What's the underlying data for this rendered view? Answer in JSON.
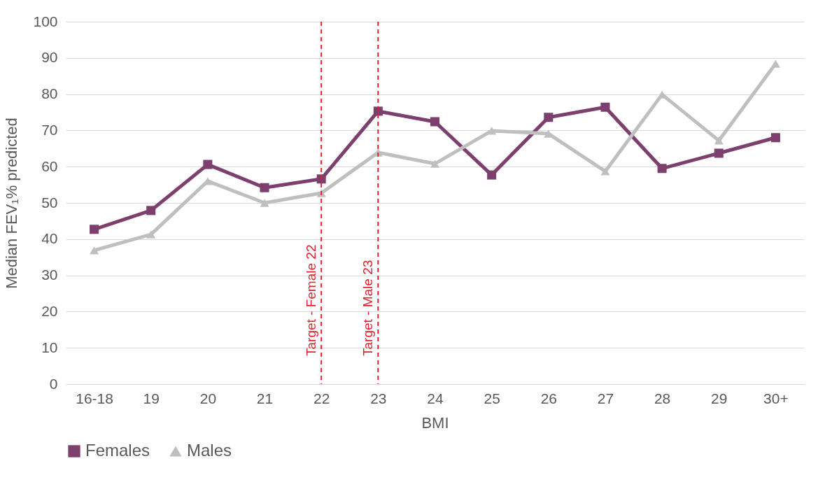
{
  "chart_data": {
    "type": "line",
    "xlabel": "BMI",
    "ylabel": "Median FEV₁% predicted",
    "categories": [
      "16-18",
      "19",
      "20",
      "21",
      "22",
      "23",
      "24",
      "25",
      "26",
      "27",
      "28",
      "29",
      "30+"
    ],
    "series": [
      {
        "name": "Females",
        "color": "#7d3f6e",
        "marker": "square",
        "values": [
          42.7,
          47.9,
          60.6,
          54.2,
          56.6,
          75.3,
          72.4,
          57.7,
          73.6,
          76.4,
          59.5,
          63.7,
          68.0
        ]
      },
      {
        "name": "Males",
        "color": "#bfbfbf",
        "marker": "triangle",
        "values": [
          36.9,
          41.3,
          56.0,
          50.0,
          52.7,
          63.9,
          60.8,
          69.9,
          69.1,
          58.7,
          79.9,
          67.2,
          88.4
        ]
      }
    ],
    "ylim": [
      0,
      100
    ],
    "yticks": [
      0,
      10,
      20,
      30,
      40,
      50,
      60,
      70,
      80,
      90,
      100
    ],
    "grid": "y",
    "legend": "bottom",
    "ref_lines": [
      {
        "axis": "x",
        "value": "22",
        "label": "Target - Female 22",
        "color": "#e0202a",
        "line_style": "dashed"
      },
      {
        "axis": "x",
        "value": "23",
        "label": "Target - Male 23",
        "color": "#e0202a",
        "line_style": "dashed"
      }
    ]
  }
}
